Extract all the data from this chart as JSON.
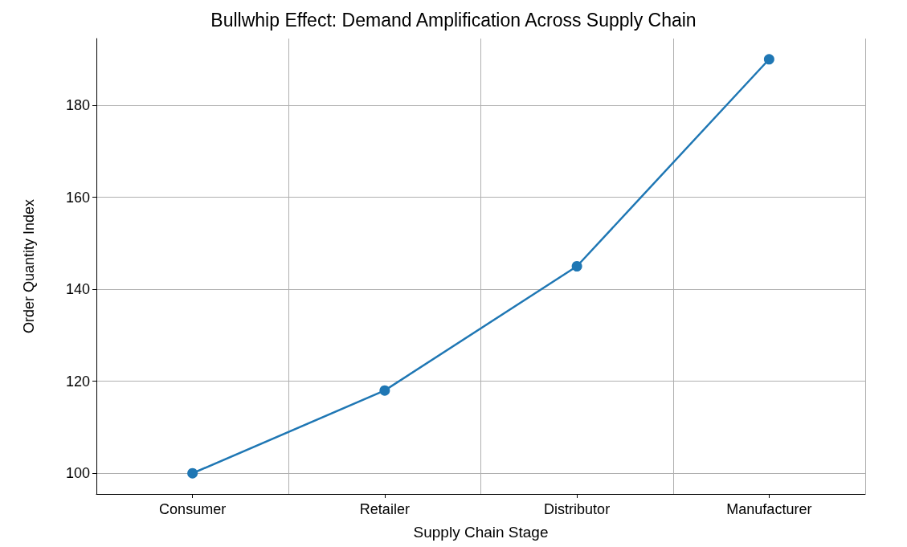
{
  "chart_data": {
    "type": "line",
    "title": "Bullwhip Effect: Demand Amplification Across Supply Chain",
    "xlabel": "Supply Chain Stage",
    "ylabel": "Order Quantity Index",
    "categories": [
      "Consumer",
      "Retailer",
      "Distributor",
      "Manufacturer"
    ],
    "series": [
      {
        "color": "#1f77b4",
        "values": [
          100,
          118,
          145,
          190
        ]
      }
    ],
    "ylim": [
      95.5,
      194.5
    ],
    "yticks": [
      100,
      120,
      140,
      160,
      180
    ],
    "grid": true,
    "marker": "circle",
    "line_style": "solid"
  }
}
